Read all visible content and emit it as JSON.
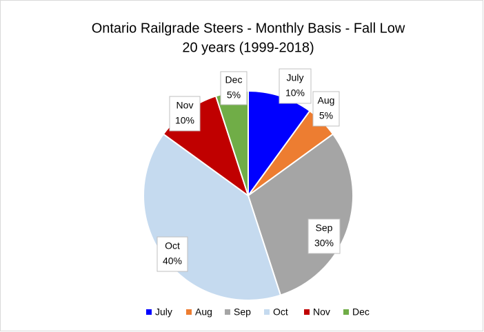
{
  "chart_data": {
    "type": "pie",
    "title": "Ontario Railgrade Steers - Monthly Basis  -  Fall Low",
    "subtitle": "20 years (1999-2018)",
    "categories": [
      "July",
      "Aug",
      "Sep",
      "Oct",
      "Nov",
      "Dec"
    ],
    "values": [
      10,
      5,
      30,
      40,
      10,
      5
    ],
    "value_labels": [
      "10%",
      "5%",
      "30%",
      "40%",
      "10%",
      "5%"
    ],
    "colors": [
      "#0000ff",
      "#ed7d31",
      "#a5a5a5",
      "#c5daef",
      "#c00000",
      "#70ad47"
    ],
    "legend": "bottom"
  }
}
